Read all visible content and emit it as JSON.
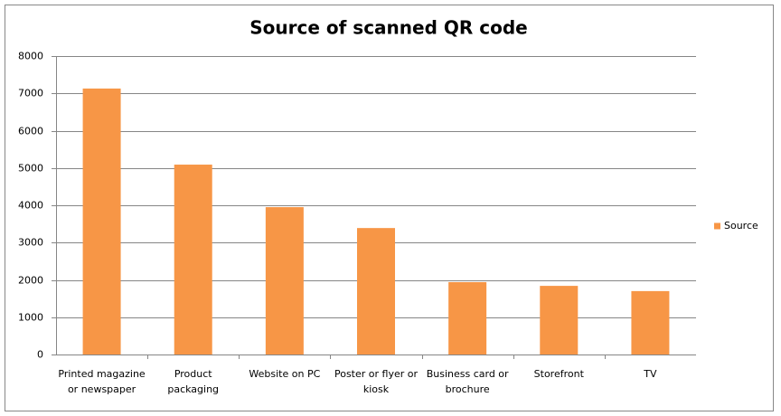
{
  "chart_data": {
    "type": "bar",
    "title": "Source of scanned QR code",
    "categories": [
      "Printed magazine or newspaper",
      "Product packaging",
      "Website on PC",
      "Poster or flyer or kiosk",
      "Business card or brochure",
      "Storefront",
      "TV"
    ],
    "series": [
      {
        "name": "Source",
        "color": "#f79646",
        "values": [
          7130,
          5090,
          3950,
          3390,
          1940,
          1840,
          1700
        ]
      }
    ],
    "ylim": [
      0,
      8000
    ],
    "yticks": [
      0,
      1000,
      2000,
      3000,
      4000,
      5000,
      6000,
      7000,
      8000
    ],
    "grid": true,
    "legend": "right"
  }
}
